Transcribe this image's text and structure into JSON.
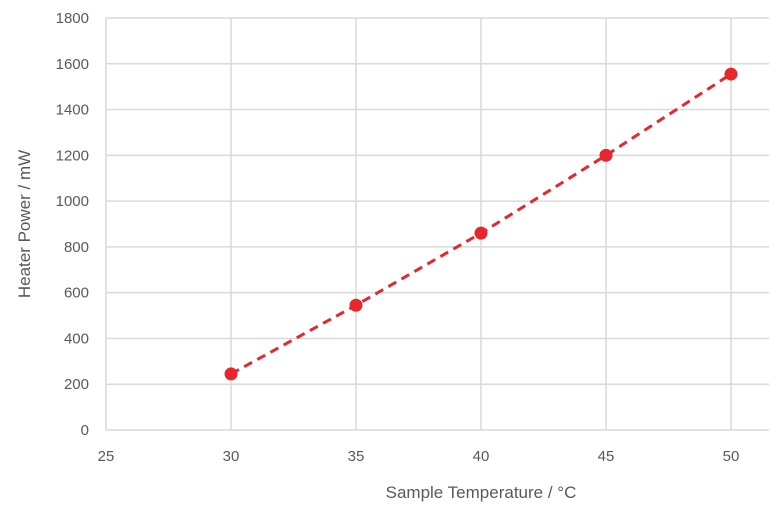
{
  "chart_data": {
    "type": "scatter",
    "title": "",
    "xlabel": "Sample Temperature / °C",
    "ylabel": "Heater Power / mW",
    "xlim": [
      25,
      50
    ],
    "ylim": [
      0,
      1800
    ],
    "xticks": [
      25,
      30,
      35,
      40,
      45,
      50
    ],
    "yticks": [
      0,
      200,
      400,
      600,
      800,
      1000,
      1200,
      1400,
      1600,
      1800
    ],
    "grid": true,
    "legend": "none",
    "series": [
      {
        "points": [
          {
            "x": 30,
            "y": 245
          },
          {
            "x": 35,
            "y": 545
          },
          {
            "x": 40,
            "y": 860
          },
          {
            "x": 45,
            "y": 1200
          },
          {
            "x": 50,
            "y": 1555
          }
        ],
        "color": "#e8262d",
        "line_style": "dashed"
      }
    ]
  }
}
